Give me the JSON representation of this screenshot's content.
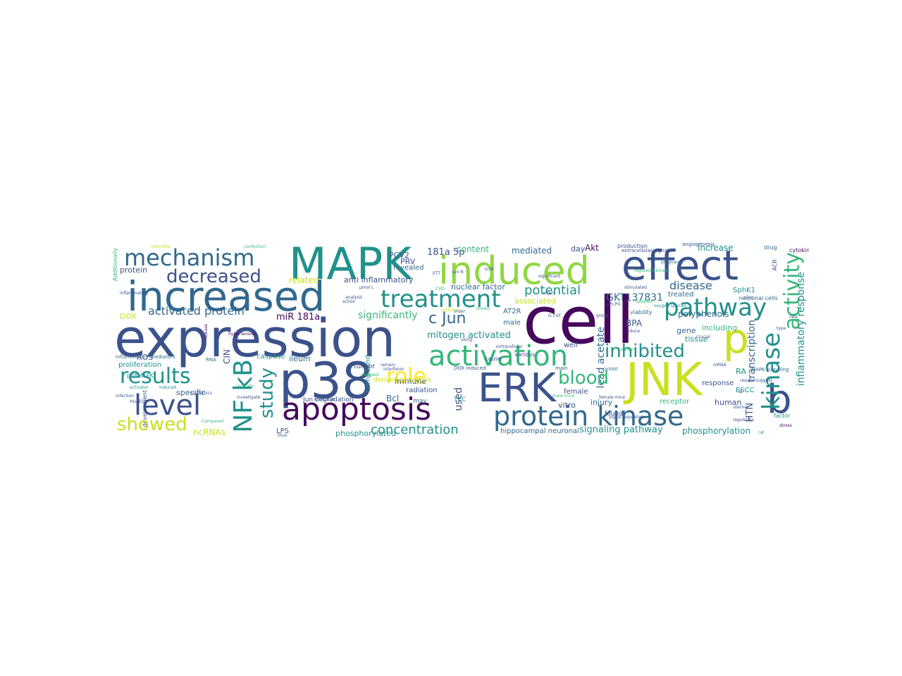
{
  "palette": {
    "dark_purple": "#46085c",
    "indigo": "#3b528b",
    "blue": "#31688e",
    "teal": "#21918c",
    "green": "#35b779",
    "lime": "#90d743",
    "yellow": "#c8e020",
    "bright_yellow": "#fde725"
  },
  "words": [
    {
      "text": "cell"
    },
    {
      "text": "expression"
    },
    {
      "text": "MAPK"
    },
    {
      "text": "p38"
    },
    {
      "text": "induced"
    },
    {
      "text": "effect"
    },
    {
      "text": "increased"
    },
    {
      "text": "JNK"
    },
    {
      "text": "ERK"
    },
    {
      "text": "p"
    },
    {
      "text": "apoptosis"
    },
    {
      "text": "b"
    },
    {
      "text": "activation"
    },
    {
      "text": "protein kinase"
    },
    {
      "text": "treatment"
    },
    {
      "text": "mechanism"
    },
    {
      "text": "level"
    },
    {
      "text": "pathway"
    },
    {
      "text": "kinase"
    },
    {
      "text": "activity"
    },
    {
      "text": "results"
    },
    {
      "text": "decreased"
    },
    {
      "text": "NF kB"
    },
    {
      "text": "role"
    },
    {
      "text": "inhibited"
    },
    {
      "text": "blood"
    },
    {
      "text": "showed"
    },
    {
      "text": "study"
    },
    {
      "text": "c Jun"
    },
    {
      "text": "concentration"
    },
    {
      "text": "potential"
    },
    {
      "text": "disease"
    },
    {
      "text": "activated protein"
    },
    {
      "text": "signaling pathway"
    },
    {
      "text": "GKT137831"
    },
    {
      "text": "significantly"
    },
    {
      "text": "mitogen activated"
    },
    {
      "text": "phosphorylation"
    },
    {
      "text": "inflammatory response"
    },
    {
      "text": "transcription"
    },
    {
      "text": "181a 5p"
    },
    {
      "text": "anti inflammatory"
    },
    {
      "text": "polyphenols"
    },
    {
      "text": "miR 181a"
    },
    {
      "text": "content"
    },
    {
      "text": "mediated"
    },
    {
      "text": "increase"
    },
    {
      "text": "revealed"
    },
    {
      "text": "PRV"
    },
    {
      "text": "PCV2"
    },
    {
      "text": "day"
    },
    {
      "text": "Akt"
    },
    {
      "text": "protein"
    },
    {
      "text": "related"
    },
    {
      "text": "nuclear factor"
    },
    {
      "text": "SphK1"
    },
    {
      "text": "BPA"
    },
    {
      "text": "treated"
    },
    {
      "text": "gene"
    },
    {
      "text": "including"
    },
    {
      "text": "tissue"
    },
    {
      "text": "neuronal cells"
    },
    {
      "text": "lead acetate"
    },
    {
      "text": "DOX"
    },
    {
      "text": "ROS"
    },
    {
      "text": "proliferation"
    },
    {
      "text": "caspase"
    },
    {
      "text": "ileum"
    },
    {
      "text": "tumor"
    },
    {
      "text": "immune"
    },
    {
      "text": "associated"
    },
    {
      "text": "male"
    },
    {
      "text": "well"
    },
    {
      "text": "AT2R"
    },
    {
      "text": "radiation"
    },
    {
      "text": "Bcl"
    },
    {
      "text": "used"
    },
    {
      "text": "female"
    },
    {
      "text": "found"
    },
    {
      "text": "injury"
    },
    {
      "text": "vitro"
    },
    {
      "text": "receptor"
    },
    {
      "text": "human"
    },
    {
      "text": "response"
    },
    {
      "text": "RA"
    },
    {
      "text": "HTN"
    },
    {
      "text": "ESCC"
    },
    {
      "text": "factor"
    },
    {
      "text": "ncRNAs"
    },
    {
      "text": "LPS"
    },
    {
      "text": "phosphorylated"
    },
    {
      "text": "hippocampal neuronal"
    },
    {
      "text": "Jun degradation"
    },
    {
      "text": "CIN"
    },
    {
      "text": "inhibitor"
    },
    {
      "text": "specific"
    },
    {
      "text": "compound"
    },
    {
      "text": "may"
    },
    {
      "text": "TEC"
    },
    {
      "text": "derived exosomes"
    },
    {
      "text": "p38MAPK"
    },
    {
      "text": "RNA"
    },
    {
      "text": "inflammatory mediators"
    },
    {
      "text": "DOX induced"
    },
    {
      "text": "cause"
    },
    {
      "text": "various"
    },
    {
      "text": "main"
    },
    {
      "text": "inhibit"
    },
    {
      "text": "ACR"
    },
    {
      "text": "viability"
    },
    {
      "text": "drug"
    },
    {
      "text": "cytokine"
    },
    {
      "text": "production"
    },
    {
      "text": "extracellular signal"
    },
    {
      "text": "angiogenesis"
    },
    {
      "text": "α"
    },
    {
      "text": "Additionally"
    },
    {
      "text": "development"
    },
    {
      "text": "MAPK signaling"
    },
    {
      "text": "stress"
    },
    {
      "text": "rat"
    },
    {
      "text": "type"
    },
    {
      "text": "rate"
    },
    {
      "text": "results suggest"
    },
    {
      "text": "uterine"
    },
    {
      "text": "significant"
    },
    {
      "text": "pregnancy"
    },
    {
      "text": "regulated kinase"
    },
    {
      "text": "stimulated"
    },
    {
      "text": "play"
    },
    {
      "text": "crucial"
    },
    {
      "text": "male mice"
    },
    {
      "text": "female mice"
    },
    {
      "text": "signal regulated"
    },
    {
      "text": "regulation"
    },
    {
      "text": "cellular"
    },
    {
      "text": "induce"
    },
    {
      "text": "artery"
    },
    {
      "text": "group"
    },
    {
      "text": "LPS PG"
    },
    {
      "text": "isolated"
    },
    {
      "text": "oxygen species"
    },
    {
      "text": "analysis"
    },
    {
      "text": "action"
    },
    {
      "text": "release"
    },
    {
      "text": "addition"
    },
    {
      "text": "CVD"
    },
    {
      "text": "order"
    },
    {
      "text": "shown"
    },
    {
      "text": "extracellular"
    },
    {
      "text": "remain"
    },
    {
      "text": "interferon"
    },
    {
      "text": "exposed"
    },
    {
      "text": "using"
    },
    {
      "text": "infection"
    },
    {
      "text": "HUAECs"
    },
    {
      "text": "activator"
    },
    {
      "text": "induced"
    },
    {
      "text": "5p mimics"
    },
    {
      "text": "indicate"
    },
    {
      "text": "investigate"
    },
    {
      "text": "thus"
    },
    {
      "text": "Compared"
    },
    {
      "text": "inflammatory"
    },
    {
      "text": "inducible"
    },
    {
      "text": "confection"
    },
    {
      "text": "hypertension"
    },
    {
      "text": "GSA"
    },
    {
      "text": "ETT"
    },
    {
      "text": "Jun N"
    },
    {
      "text": "μmol L"
    },
    {
      "text": "G CSF"
    },
    {
      "text": "mRNA"
    }
  ]
}
